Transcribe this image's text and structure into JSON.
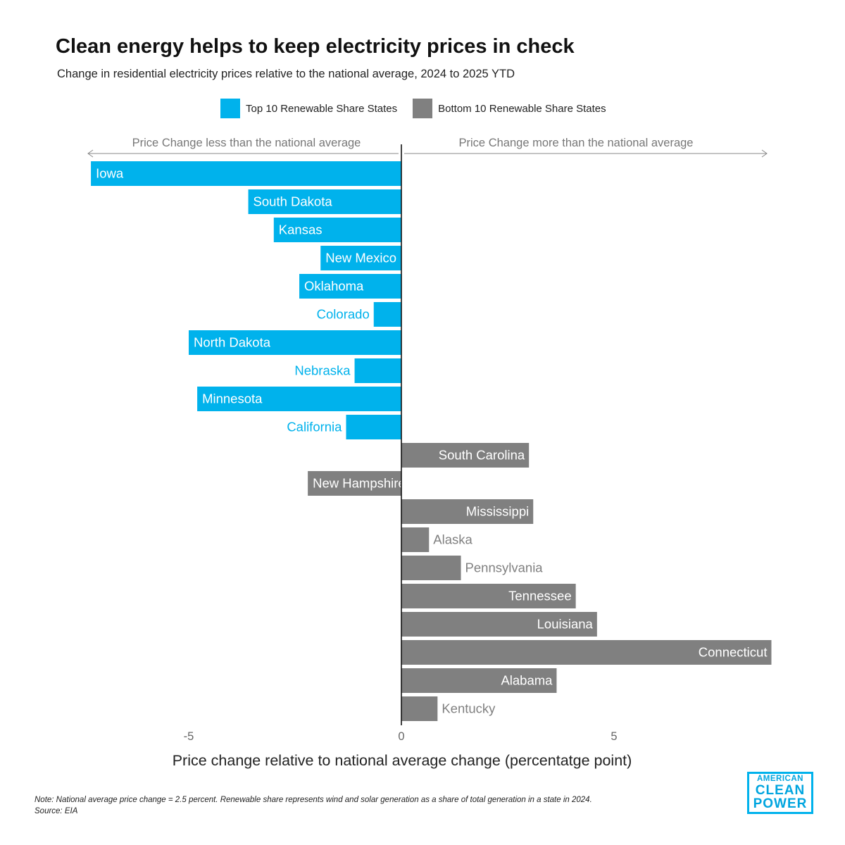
{
  "chart_data": {
    "type": "bar",
    "orientation": "horizontal",
    "title": "Clean energy helps to keep electricity prices in check",
    "subtitle": "Change in residential electricity prices relative to the national average, 2024 to 2025 YTD",
    "xlabel": "Price change relative to national average change (percentatge point)",
    "xlim": [
      -7.5,
      8.7
    ],
    "xticks": [
      -5,
      0,
      5
    ],
    "direction_labels": {
      "left": "Price Change less than the national average",
      "right": "Price Change more than the national average"
    },
    "series": [
      {
        "name": "Top 10 Renewable Share States",
        "color": "#00b2ec",
        "categories": [
          "Iowa",
          "South Dakota",
          "Kansas",
          "New Mexico",
          "Oklahoma",
          "Colorado",
          "North Dakota",
          "Nebraska",
          "Minnesota",
          "California"
        ],
        "values": [
          -7.3,
          -3.6,
          -3.0,
          -1.9,
          -2.4,
          -0.65,
          -5.0,
          -1.1,
          -4.8,
          -1.3
        ]
      },
      {
        "name": "Bottom 10 Renewable Share States",
        "color": "#808080",
        "categories": [
          "South Carolina",
          "New Hampshire",
          "Mississippi",
          "Alaska",
          "Pennsylvania",
          "Tennessee",
          "Louisiana",
          "Connecticut",
          "Alabama",
          "Kentucky"
        ],
        "values": [
          3.0,
          -2.2,
          3.1,
          0.65,
          1.4,
          4.1,
          4.6,
          8.7,
          3.65,
          0.85
        ]
      }
    ]
  },
  "note": "Note: National average price change = 2.5 percent. Renewable share represents wind and solar generation as a share of total generation in a state in 2024.",
  "source": "Source: EIA",
  "logo": {
    "line1": "AMERICAN",
    "line2": "CLEAN",
    "line3": "POWER"
  }
}
